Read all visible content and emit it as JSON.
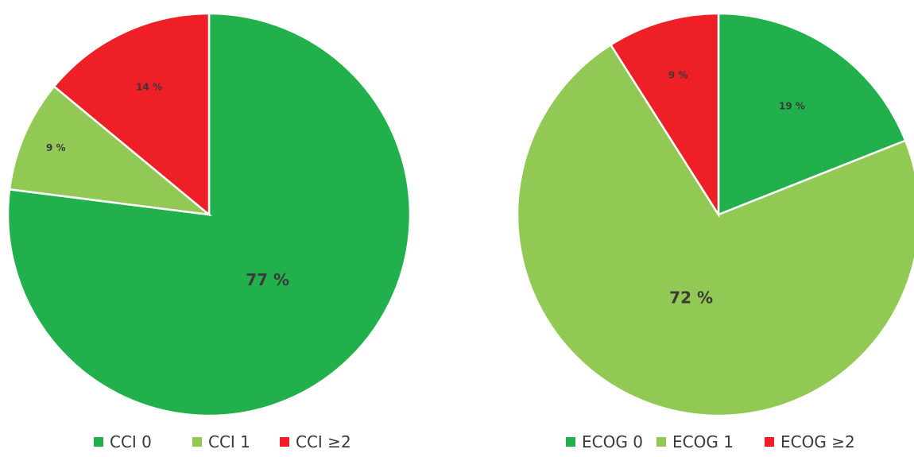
{
  "chart_data": [
    {
      "type": "pie",
      "categories": [
        "CCI 0",
        "CCI 1",
        "CCI ≥2"
      ],
      "values": [
        77,
        9,
        14
      ],
      "labels": [
        "77 %",
        "9 %",
        "14 %"
      ],
      "colors": [
        "#22b04c",
        "#92c954",
        "#ee1f26"
      ],
      "start_angle_deg": 0,
      "direction": "clockwise",
      "legend_position": "bottom"
    },
    {
      "type": "pie",
      "categories": [
        "ECOG 0",
        "ECOG 1",
        "ECOG ≥2"
      ],
      "values": [
        19,
        72,
        9
      ],
      "labels": [
        "19 %",
        "72 %",
        "9 %"
      ],
      "colors": [
        "#22b04c",
        "#92c954",
        "#ee1f26"
      ],
      "start_angle_deg": 0,
      "direction": "clockwise",
      "legend_position": "bottom"
    }
  ]
}
